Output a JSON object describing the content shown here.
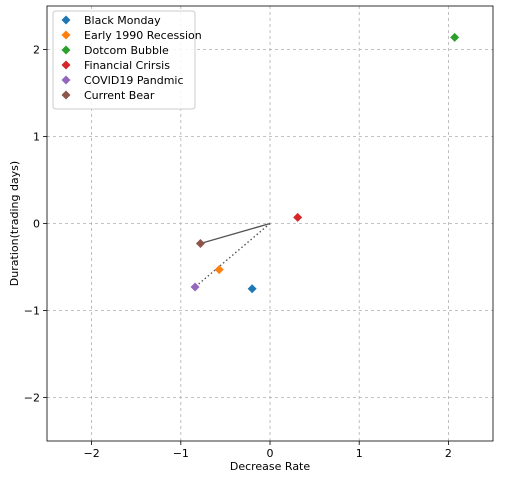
{
  "chart_data": {
    "type": "scatter",
    "xlabel": "Decrease Rate",
    "ylabel": "Duration(trading days)",
    "xlim": [
      -2.5,
      2.5
    ],
    "ylim": [
      -2.5,
      2.5
    ],
    "xticks": [
      -2,
      -1,
      0,
      1,
      2
    ],
    "yticks": [
      -2,
      -1,
      0,
      1,
      2
    ],
    "grid": true,
    "legend_position": "top-left",
    "series": [
      {
        "name": "Black Monday",
        "color": "#1f77b4",
        "x": -0.2,
        "y": -0.75
      },
      {
        "name": "Early 1990 Recession",
        "color": "#ff7f0e",
        "x": -0.57,
        "y": -0.53
      },
      {
        "name": "Dotcom Bubble",
        "color": "#2ca02c",
        "x": 2.07,
        "y": 2.14
      },
      {
        "name": "Financial Crirsis",
        "color": "#d62728",
        "x": 0.31,
        "y": 0.07
      },
      {
        "name": "COVID19 Pandmic",
        "color": "#9467bd",
        "x": -0.84,
        "y": -0.73
      },
      {
        "name": "Current Bear",
        "color": "#8c564b",
        "x": -0.78,
        "y": -0.23
      }
    ],
    "lines": [
      {
        "style": "solid",
        "color": "#555555",
        "points": [
          [
            0,
            0
          ],
          [
            -0.78,
            -0.23
          ]
        ]
      },
      {
        "style": "dotted",
        "color": "#555555",
        "points": [
          [
            0,
            0
          ],
          [
            -0.84,
            -0.73
          ]
        ]
      }
    ]
  }
}
